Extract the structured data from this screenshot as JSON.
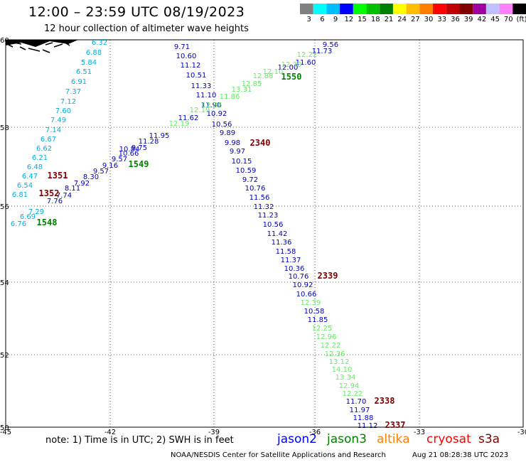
{
  "header": {
    "title": "12:00 – 23:59 UTC 08/19/2023",
    "subtitle": "12 hour collection of altimeter wave heights"
  },
  "colorbar": {
    "colors": [
      "#808080",
      "#00ffff",
      "#00bfff",
      "#0000ff",
      "#00ff00",
      "#00c000",
      "#008000",
      "#ffff00",
      "#ffbf00",
      "#ff8000",
      "#ff0000",
      "#c00000",
      "#800000",
      "#a000a0",
      "#c0c0ff",
      "#ff80ff",
      "#000000"
    ],
    "labels": [
      "3",
      "6",
      "9",
      "12",
      "15",
      "18",
      "21",
      "24",
      "27",
      "30",
      "33",
      "36",
      "39",
      "42",
      "45",
      "70",
      "(ft)"
    ]
  },
  "axes": {
    "lon_ticks": [
      "-45",
      "-42",
      "-39",
      "-36",
      "-33",
      "-30"
    ],
    "lat_ticks": [
      "60",
      "58",
      "56",
      "54",
      "52",
      "50"
    ]
  },
  "colors": {
    "jason2": "#0000c0",
    "jason3": "#008000",
    "altika": "#ff8000",
    "cryosat": "#ff0000",
    "s3a": "#800000",
    "swh_cyan": "#00b0e0",
    "swh_green": "#66e866"
  },
  "tracks": {
    "cyan": [
      "6.32",
      "6.88",
      "5.84",
      "6.51",
      "6.91",
      "7.37",
      "7.12",
      "7.60",
      "7.49",
      "7.14",
      "6.67",
      "6.62",
      "6.21",
      "6.48",
      "6.47",
      "6.54",
      "6.81",
      "7.29",
      "6.69",
      "6.76"
    ],
    "blue_north": [
      "9.71",
      "10.60",
      "11.12",
      "10.51",
      "11.33",
      "11.10",
      "11.90",
      "10.92",
      "10.56",
      "9.89",
      "9.98",
      "9.97",
      "10.15",
      "10.59",
      "9.72",
      "10.76",
      "11.56",
      "11.32",
      "11.23",
      "10.56",
      "11.42",
      "11.36",
      "11.58",
      "11.37",
      "10.36",
      "10.76",
      "10.92",
      "10.66"
    ],
    "blue_south": [
      "10.58",
      "11.85"
    ],
    "green_south": [
      "12.39",
      "12.25",
      "12.96",
      "12.22",
      "12.36",
      "13.12",
      "14.10",
      "13.34",
      "12.94",
      "12.22"
    ],
    "blue_tail": [
      "11.70",
      "11.97",
      "11.88",
      "11.12"
    ],
    "blue_diag": [
      "9.56",
      "11.73",
      "11.60",
      "12.00",
      "11.62",
      "11.95",
      "11.28",
      "10.84",
      "9.75",
      "10.66",
      "9.57",
      "9.16",
      "9.57",
      "8.30",
      "7.92",
      "8.11",
      "7.74",
      "7.76"
    ],
    "green_diag": [
      "12.22",
      "12.30",
      "12.10",
      "12.88",
      "12.85",
      "13.31",
      "11.86",
      "12.36",
      "12.19"
    ]
  },
  "time_labels": [
    {
      "text": "1550",
      "sat": "jason3"
    },
    {
      "text": "1549",
      "sat": "jason3"
    },
    {
      "text": "1548",
      "sat": "jason3"
    },
    {
      "text": "2340",
      "sat": "s3a"
    },
    {
      "text": "2339",
      "sat": "s3a"
    },
    {
      "text": "2338",
      "sat": "s3a"
    },
    {
      "text": "2337",
      "sat": "s3a"
    },
    {
      "text": "1351",
      "sat": "s3a"
    },
    {
      "text": "1352",
      "sat": "s3a"
    }
  ],
  "footer": {
    "note": "note:  1) Time is in UTC;  2) SWH is in feet",
    "sat_jason2": "jason2",
    "sat_jason3": "jason3",
    "sat_altika": "altika",
    "sat_cryosat": "cryosat",
    "sat_s3a": "s3a",
    "credit": "NOAA/NESDIS Center for Satellite Applications and Research",
    "timestamp": "Aug 21 08:28:38 UTC 2023"
  }
}
